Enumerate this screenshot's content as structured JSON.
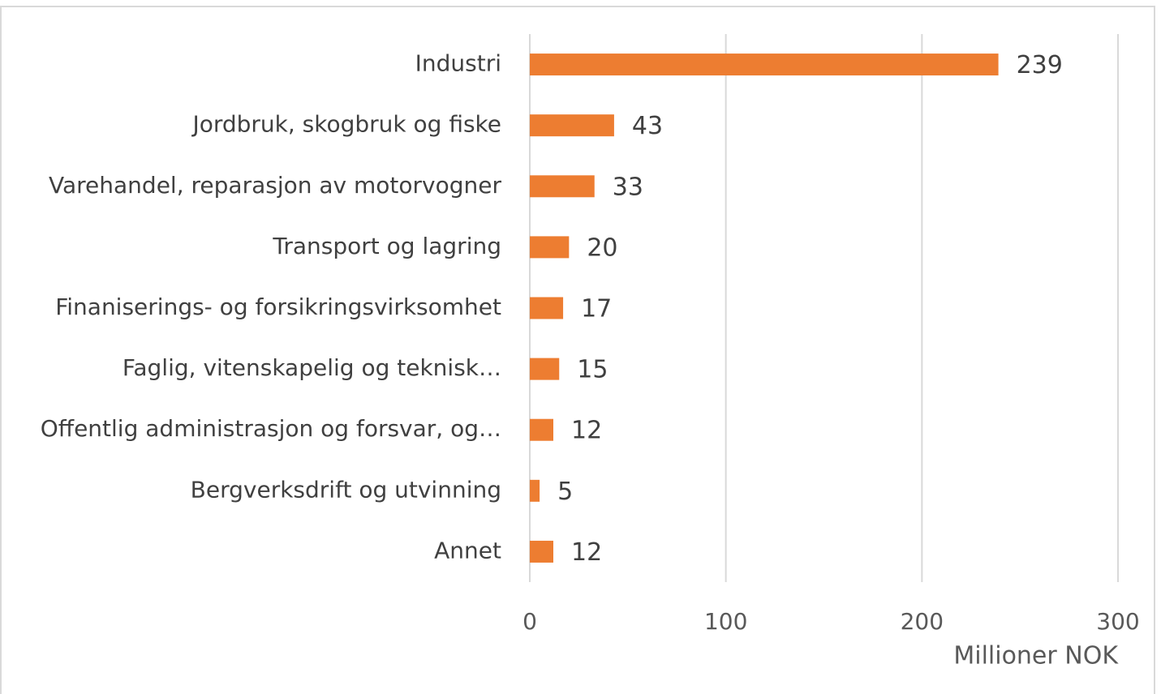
{
  "chart_data": {
    "type": "barh",
    "categories": [
      "Industri",
      "Jordbruk, skogbruk og fiske",
      "Varehandel, reparasjon av motorvogner",
      "Transport og lagring",
      "Finaniserings- og forsikringsvirksomhet",
      "Faglig, vitenskapelig og teknisk…",
      "Offentlig administrasjon og forsvar, og…",
      "Bergverksdrift og utvinning",
      "Annet"
    ],
    "values": [
      239,
      43,
      33,
      20,
      17,
      15,
      12,
      5,
      12
    ],
    "color": "#ED7D31",
    "xlim": [
      0,
      300
    ],
    "xticks": [
      0,
      100,
      200,
      300
    ],
    "x_label": "Millioner NOK",
    "grid": true
  }
}
